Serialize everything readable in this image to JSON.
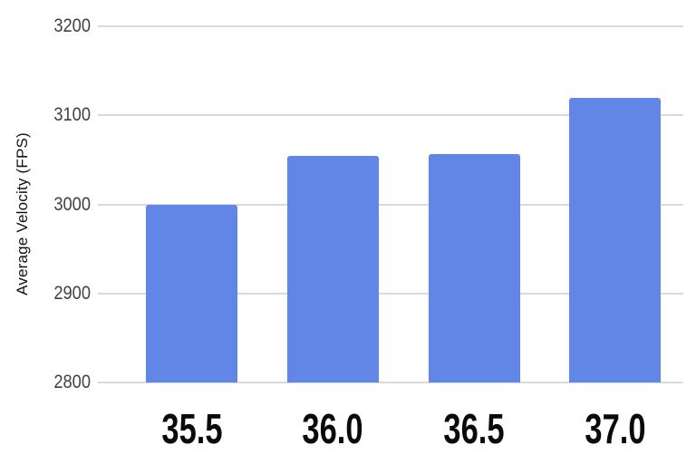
{
  "chart_data": {
    "type": "bar",
    "title": "",
    "xlabel": "",
    "ylabel": "Average Velocity (FPS)",
    "categories": [
      "35.5",
      "36.0",
      "36.5",
      "37.0"
    ],
    "values": [
      2999,
      3054,
      3056,
      3120
    ],
    "ylim": [
      2800,
      3200
    ],
    "yticks": [
      2800,
      2900,
      3000,
      3100,
      3200
    ],
    "grid": true,
    "legend": "none",
    "colors": {
      "bar": "#6186E5",
      "gridline": "#D9D9D9",
      "ytick_text": "#414141",
      "xlabel_text": "#0A0A0A",
      "ylabel_text": "#111111",
      "background": "#FFFFFF"
    }
  }
}
